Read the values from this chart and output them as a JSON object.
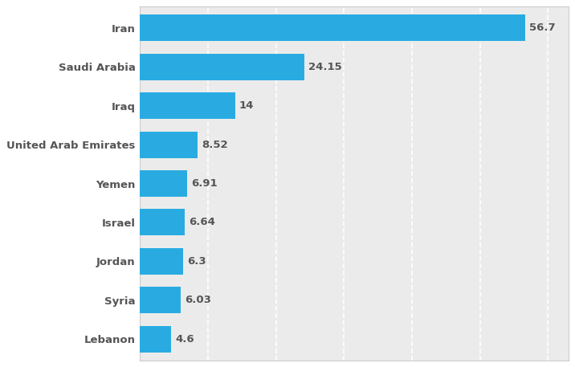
{
  "countries": [
    "Iran",
    "Saudi Arabia",
    "Iraq",
    "United Arab Emirates",
    "Yemen",
    "Israel",
    "Jordan",
    "Syria",
    "Lebanon"
  ],
  "values": [
    56.7,
    24.15,
    14,
    8.52,
    6.91,
    6.64,
    6.3,
    6.03,
    4.6
  ],
  "value_labels": [
    "56.7",
    "24.15",
    "14",
    "8.52",
    "6.91",
    "6.64",
    "6.3",
    "6.03",
    "4.6"
  ],
  "bar_color": "#29ABE2",
  "label_color": "#555555",
  "value_color": "#555555",
  "background_color": "#ffffff",
  "plot_background_color": "#ebebeb",
  "grid_color": "#ffffff",
  "xlim": [
    0,
    63
  ],
  "bar_height": 0.68,
  "fontsize_labels": 9.5,
  "fontsize_values": 9.5,
  "grid_xticks": [
    0,
    10,
    20,
    30,
    40,
    50,
    60
  ]
}
